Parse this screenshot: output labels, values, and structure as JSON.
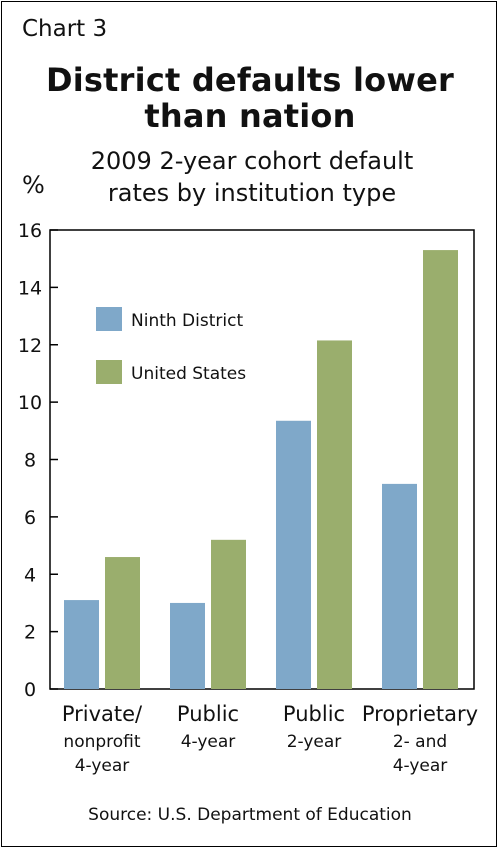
{
  "chart_label": "Chart 3",
  "title_lines": [
    "District defaults lower",
    "than nation"
  ],
  "subtitle_lines": [
    "2009 2-year cohort default",
    "rates by institution type"
  ],
  "y_unit": "%",
  "source": "Source: U.S. Department of Education",
  "colors": {
    "ninth_district": "#7fa8c9",
    "united_states": "#9aae6d",
    "axis": "#000000"
  },
  "chart_data": {
    "type": "bar",
    "title": "District defaults lower than nation",
    "subtitle": "2009 2-year cohort default rates by institution type",
    "ylabel": "%",
    "xlabel": "",
    "ylim": [
      0,
      16
    ],
    "yticks": [
      0,
      2,
      4,
      6,
      8,
      10,
      12,
      14,
      16
    ],
    "grid": false,
    "legend": "upper-left",
    "categories": [
      [
        "Private/",
        "nonprofit",
        "4-year"
      ],
      [
        "Public",
        "4-year"
      ],
      [
        "Public",
        "2-year"
      ],
      [
        "Proprietary",
        "2- and",
        "4-year"
      ]
    ],
    "series": [
      {
        "name": "Ninth District",
        "values": [
          3.1,
          3.0,
          9.35,
          7.15
        ]
      },
      {
        "name": "United States",
        "values": [
          4.6,
          5.2,
          12.15,
          15.3
        ]
      }
    ]
  }
}
